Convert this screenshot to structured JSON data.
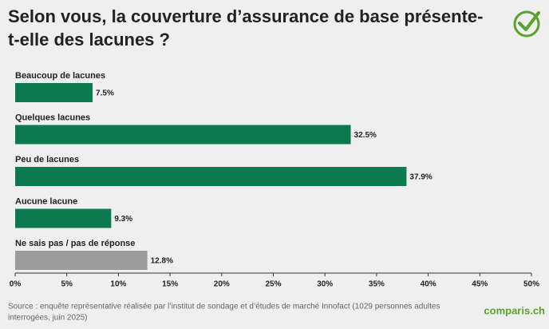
{
  "chart_data": {
    "type": "hbar",
    "title": [
      "Selon vous, la couverture d’assurance de base présente-",
      "t-elle des lacunes ?"
    ],
    "categories": [
      "Beaucoup de lacunes",
      "Quelques lacunes",
      "Peu de lacunes",
      "Aucune lacune",
      "Ne sais pas / pas de réponse"
    ],
    "values": [
      7.5,
      32.5,
      37.9,
      9.3,
      12.8
    ],
    "value_labels": [
      "7.5%",
      "32.5%",
      "37.9%",
      "9.3%",
      "12.8%"
    ],
    "colors": [
      "#0b7a4f",
      "#0b7a4f",
      "#0b7a4f",
      "#0b7a4f",
      "#9b9b9b"
    ],
    "xlim": [
      0,
      50
    ],
    "xticks": [
      {
        "value": 0,
        "label": "0%"
      },
      {
        "value": 5,
        "label": "5%"
      },
      {
        "value": 10,
        "label": "10%"
      },
      {
        "value": 15,
        "label": "15%"
      },
      {
        "value": 20,
        "label": "20%"
      },
      {
        "value": 25,
        "label": "25%"
      },
      {
        "value": 30,
        "label": "30%"
      },
      {
        "value": 35,
        "label": "35%"
      },
      {
        "value": 40,
        "label": "40%"
      },
      {
        "value": 45,
        "label": "45%"
      },
      {
        "value": 50,
        "label": "50%"
      }
    ],
    "grid": false,
    "source": [
      "Source : enquête représentative réalisée par l’institut de sondage et d’études de marché Innofact (1029 personnes adultes",
      "interrogées, juin 2025)"
    ],
    "logo": "comparis.ch"
  }
}
